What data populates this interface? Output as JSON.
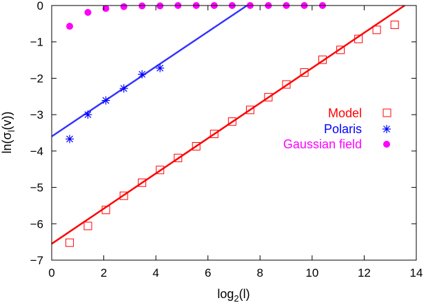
{
  "chart_data": {
    "type": "scatter",
    "title": "",
    "xlabel": {
      "base": "log",
      "sub": "2",
      "tail": "(l)"
    },
    "ylabel": {
      "head": "ln(σ",
      "sub": "l",
      "tail": "(v))"
    },
    "xlim": [
      0,
      14
    ],
    "ylim": [
      -7,
      0
    ],
    "xticks": [
      0,
      2,
      4,
      6,
      8,
      10,
      12,
      14
    ],
    "xtick_labels": [
      "0",
      "2",
      "4",
      "6",
      "8",
      "10",
      "12",
      "14"
    ],
    "yticks": [
      -7,
      -6,
      -5,
      -4,
      -3,
      -2,
      -1,
      0
    ],
    "ytick_labels": [
      "−7",
      "−6",
      "−5",
      "−4",
      "−3",
      "−2",
      "−1",
      "0"
    ],
    "grid": false,
    "legend_position": "right",
    "series": [
      {
        "name": "Model",
        "marker": "square-open",
        "color": "#ff0000",
        "x": [
          0.69,
          1.39,
          2.08,
          2.77,
          3.47,
          4.16,
          4.85,
          5.55,
          6.24,
          6.93,
          7.62,
          8.32,
          9.01,
          9.7,
          10.4,
          11.09,
          11.78,
          12.48,
          13.17
        ],
        "y": [
          -6.52,
          -6.06,
          -5.62,
          -5.23,
          -4.87,
          -4.52,
          -4.19,
          -3.87,
          -3.53,
          -3.19,
          -2.87,
          -2.52,
          -2.17,
          -1.84,
          -1.49,
          -1.22,
          -0.92,
          -0.67,
          -0.53
        ],
        "fit": {
          "x": [
            0,
            13.55
          ],
          "y": [
            -6.55,
            0
          ],
          "color": "#ff0000"
        }
      },
      {
        "name": "Polaris",
        "marker": "star",
        "color": "#0000ff",
        "x": [
          0.69,
          1.39,
          2.08,
          2.77,
          3.47,
          4.16
        ],
        "y": [
          -3.67,
          -3.0,
          -2.61,
          -2.28,
          -1.89,
          -1.72
        ],
        "fit": {
          "x": [
            0,
            7.5
          ],
          "y": [
            -3.6,
            0
          ],
          "color": "#3333ff"
        }
      },
      {
        "name": "Gaussian field",
        "marker": "circle-filled",
        "color": "#ff00ff",
        "x": [
          0.69,
          1.39,
          2.08,
          2.77,
          3.47,
          4.16,
          4.85,
          5.55,
          6.24,
          6.93,
          7.62,
          8.32,
          9.01,
          9.7,
          10.4
        ],
        "y": [
          -0.57,
          -0.19,
          -0.08,
          -0.03,
          -0.01,
          -0.01,
          0,
          0,
          0,
          0,
          0,
          0,
          0,
          0,
          0
        ]
      }
    ]
  }
}
